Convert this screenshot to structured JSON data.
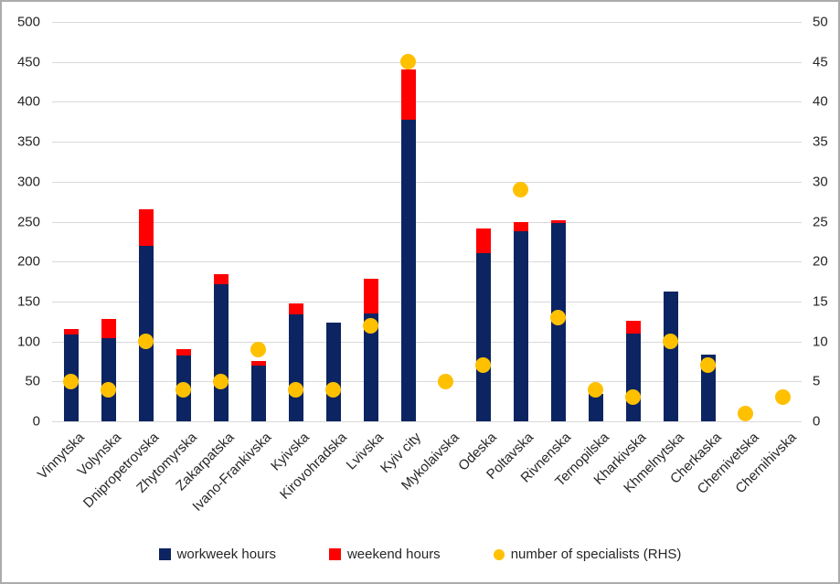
{
  "chart_data": {
    "type": "bar",
    "subtype": "stacked-bar-with-scatter-overlay",
    "title": "",
    "xlabel": "",
    "ylabel_left": "",
    "ylabel_right": "",
    "grid": true,
    "legend_position": "bottom",
    "categories": [
      "Vinnytska",
      "Volynska",
      "Dnipropetrovska",
      "Zhytomyrska",
      "Zakarpatska",
      "Ivano-Frankivska",
      "Kyivska",
      "Kirovohradska",
      "Lvivska",
      "Kyiv city",
      "Mykolaivska",
      "Odeska",
      "Poltavska",
      "Rivnenska",
      "Ternopilska",
      "Kharkivska",
      "Khmelnytska",
      "Cherkaska",
      "Chernivetska",
      "Chernihivska"
    ],
    "series": [
      {
        "name": "workweek hours",
        "type": "bar",
        "axis": "left",
        "color": "#0c2461",
        "values": [
          109,
          104,
          220,
          82,
          172,
          70,
          134,
          124,
          135,
          378,
          0,
          211,
          238,
          248,
          34,
          110,
          163,
          83,
          0,
          0
        ]
      },
      {
        "name": "weekend hours",
        "type": "bar",
        "axis": "left",
        "color": "#ff0000",
        "values": [
          6,
          24,
          45,
          8,
          12,
          6,
          14,
          0,
          43,
          62,
          0,
          30,
          12,
          4,
          0,
          16,
          0,
          0,
          0,
          0
        ]
      },
      {
        "name": "number of specialists (RHS)",
        "type": "scatter",
        "axis": "right",
        "color": "#ffc000",
        "values": [
          5,
          4,
          10,
          4,
          5,
          9,
          4,
          4,
          12,
          45,
          5,
          7,
          29,
          13,
          4,
          3,
          10,
          7,
          1,
          3
        ]
      }
    ],
    "left_axis": {
      "min": 0,
      "max": 500,
      "step": 50,
      "ticks": [
        0,
        50,
        100,
        150,
        200,
        250,
        300,
        350,
        400,
        450,
        500
      ]
    },
    "right_axis": {
      "min": 0,
      "max": 50,
      "step": 5,
      "ticks": [
        0,
        5,
        10,
        15,
        20,
        25,
        30,
        35,
        40,
        45,
        50
      ]
    },
    "colors": {
      "gridline": "#d9d9d9",
      "axis_text": "#262626",
      "frame_border": "#ababab",
      "background": "#ffffff"
    }
  }
}
